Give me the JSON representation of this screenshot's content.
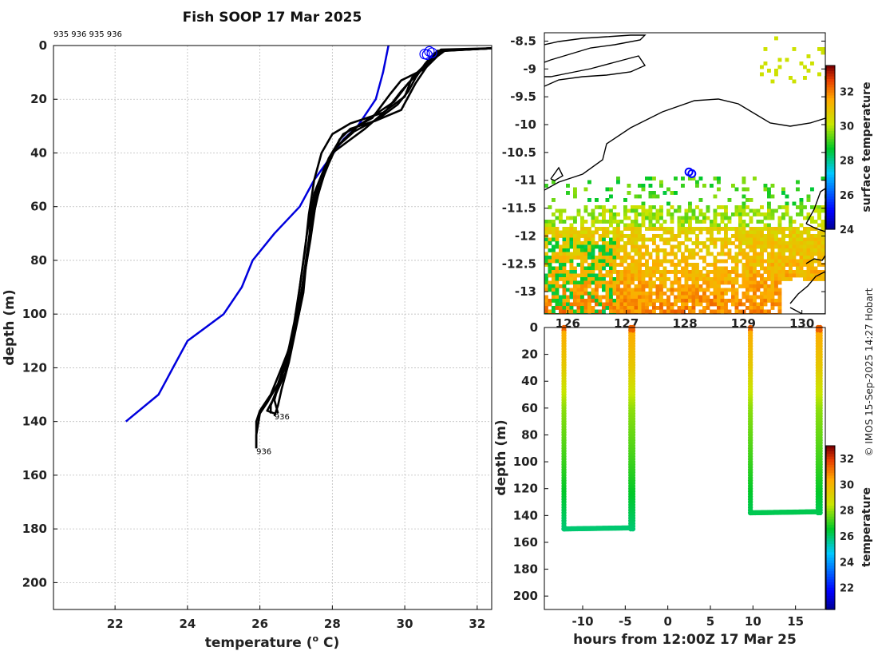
{
  "title": "Fish SOOP 17 Mar 2025",
  "credit": "© IMOS 15-Sep-2025 14:27 Hobart",
  "profile_ids_label": "935 936 935 936",
  "colors": {
    "profile": "#000000",
    "climatology": "#0000dd",
    "marker": "#0000ff"
  },
  "chart_data": [
    {
      "type": "line",
      "name": "temperature-profile",
      "xlabel": "temperature (o C)",
      "ylabel": "depth (m)",
      "xlim": [
        20.3,
        32.4
      ],
      "ylim": [
        0,
        210
      ],
      "xticks": [
        22,
        24,
        26,
        28,
        30,
        32
      ],
      "yticks": [
        0,
        20,
        40,
        60,
        80,
        100,
        120,
        140,
        160,
        180,
        200
      ],
      "end_labels": [
        {
          "text": "936",
          "x": 26.4,
          "y": 138
        },
        {
          "text": "936",
          "x": 25.9,
          "y": 151
        }
      ],
      "series": [
        {
          "name": "climatology",
          "color": "#0000dd",
          "points": [
            [
              29.55,
              0
            ],
            [
              29.4,
              10
            ],
            [
              29.2,
              20
            ],
            [
              28.7,
              30
            ],
            [
              28.3,
              35
            ],
            [
              27.5,
              50
            ],
            [
              27.1,
              60
            ],
            [
              26.4,
              70
            ],
            [
              25.8,
              80
            ],
            [
              25.5,
              90
            ],
            [
              25.0,
              100
            ],
            [
              24.0,
              110
            ],
            [
              23.6,
              120
            ],
            [
              23.4,
              125
            ],
            [
              23.2,
              130
            ],
            [
              22.3,
              140
            ]
          ]
        },
        {
          "name": "profile-1",
          "color": "#000000",
          "points": [
            [
              32.4,
              1
            ],
            [
              31.0,
              2
            ],
            [
              30.8,
              5
            ],
            [
              30.5,
              9
            ],
            [
              29.9,
              13
            ],
            [
              29.6,
              18
            ],
            [
              29.1,
              27
            ],
            [
              28.3,
              33
            ],
            [
              27.9,
              42
            ],
            [
              27.6,
              52
            ],
            [
              27.45,
              62
            ],
            [
              27.3,
              78
            ],
            [
              27.2,
              92
            ],
            [
              27.0,
              105
            ],
            [
              26.8,
              118
            ],
            [
              26.6,
              128
            ],
            [
              26.5,
              134
            ],
            [
              26.4,
              138
            ]
          ]
        },
        {
          "name": "profile-2",
          "color": "#000000",
          "points": [
            [
              32.4,
              1
            ],
            [
              30.9,
              2
            ],
            [
              30.7,
              5
            ],
            [
              30.4,
              10
            ],
            [
              30.1,
              14
            ],
            [
              29.7,
              21
            ],
            [
              28.7,
              30
            ],
            [
              28.1,
              38
            ],
            [
              27.8,
              45
            ],
            [
              27.5,
              55
            ],
            [
              27.3,
              70
            ],
            [
              27.15,
              85
            ],
            [
              27.0,
              100
            ],
            [
              26.9,
              110
            ],
            [
              26.7,
              122
            ],
            [
              26.4,
              131
            ],
            [
              26.2,
              136
            ],
            [
              26.4,
              137
            ]
          ]
        },
        {
          "name": "profile-3",
          "color": "#000000",
          "points": [
            [
              32.4,
              1
            ],
            [
              31.1,
              2
            ],
            [
              30.9,
              4
            ],
            [
              30.6,
              8
            ],
            [
              30.3,
              14
            ],
            [
              29.9,
              24
            ],
            [
              29.2,
              28
            ],
            [
              28.5,
              31
            ],
            [
              28.2,
              35
            ],
            [
              27.9,
              44
            ],
            [
              27.6,
              54
            ],
            [
              27.4,
              66
            ],
            [
              27.3,
              80
            ],
            [
              27.1,
              95
            ],
            [
              26.95,
              108
            ],
            [
              26.6,
              120
            ],
            [
              26.3,
              130
            ],
            [
              26.0,
              136
            ],
            [
              25.9,
              140
            ],
            [
              25.9,
              150
            ]
          ]
        },
        {
          "name": "profile-4",
          "color": "#000000",
          "points": [
            [
              32.4,
              1
            ],
            [
              31.0,
              1.5
            ],
            [
              30.8,
              4
            ],
            [
              30.5,
              8
            ],
            [
              30.2,
              12
            ],
            [
              30.0,
              19
            ],
            [
              29.4,
              25
            ],
            [
              28.5,
              29
            ],
            [
              28.0,
              33
            ],
            [
              27.7,
              40
            ],
            [
              27.5,
              50
            ],
            [
              27.35,
              63
            ],
            [
              27.25,
              76
            ],
            [
              27.1,
              90
            ],
            [
              26.95,
              103
            ],
            [
              26.75,
              116
            ],
            [
              26.5,
              126
            ],
            [
              26.2,
              133
            ],
            [
              26.0,
              137
            ],
            [
              25.9,
              145
            ],
            [
              25.9,
              150
            ]
          ]
        },
        {
          "name": "profile-5",
          "color": "#000000",
          "points": [
            [
              32.4,
              1
            ],
            [
              30.95,
              2
            ],
            [
              30.7,
              6
            ],
            [
              30.3,
              11
            ],
            [
              29.9,
              17
            ],
            [
              29.5,
              24
            ],
            [
              28.9,
              31
            ],
            [
              28.4,
              36
            ],
            [
              28.0,
              40
            ],
            [
              27.8,
              47
            ],
            [
              27.55,
              58
            ],
            [
              27.4,
              72
            ],
            [
              27.2,
              88
            ],
            [
              27.05,
              100
            ],
            [
              26.85,
              114
            ],
            [
              26.5,
              127
            ],
            [
              26.3,
              134
            ],
            [
              26.3,
              137
            ]
          ]
        },
        {
          "name": "profile-6",
          "color": "#000000",
          "points": [
            [
              32.4,
              1
            ],
            [
              31.0,
              2
            ],
            [
              30.8,
              3
            ],
            [
              30.55,
              7
            ],
            [
              30.3,
              12
            ],
            [
              30.1,
              17
            ],
            [
              29.8,
              22
            ],
            [
              29.3,
              27
            ],
            [
              28.6,
              32
            ],
            [
              28.1,
              38
            ],
            [
              27.8,
              46
            ],
            [
              27.6,
              56
            ],
            [
              27.4,
              68
            ],
            [
              27.25,
              82
            ],
            [
              27.1,
              96
            ],
            [
              26.9,
              108
            ],
            [
              26.6,
              122
            ],
            [
              26.4,
              132
            ],
            [
              26.5,
              137
            ]
          ]
        }
      ],
      "start_markers": [
        [
          30.55,
          2
        ],
        [
          30.68,
          1
        ],
        [
          30.75,
          1.5
        ],
        [
          30.62,
          2.2
        ]
      ]
    },
    {
      "type": "heatmap",
      "name": "sst-map",
      "colorbar_label": "surface temperature",
      "colorbar_ticks": [
        24,
        26,
        28,
        30,
        32
      ],
      "colorbar_range": [
        24,
        33.5
      ],
      "xlim": [
        125.6,
        130.4
      ],
      "ylim": [
        -13.4,
        -8.35
      ],
      "xticks": [
        126,
        127,
        128,
        129,
        130
      ],
      "yticks": [
        -8.5,
        -9,
        -9.5,
        -10,
        -10.5,
        -11,
        -11.5,
        -12,
        -12.5,
        -13
      ],
      "ship_positions": [
        [
          128.07,
          -10.85
        ],
        [
          128.12,
          -10.88
        ]
      ]
    },
    {
      "type": "scatter",
      "name": "depth-time-section",
      "xlabel": "hours from 12:00Z 17 Mar 25",
      "ylabel": "depth (m)",
      "colorbar_label": "temperature",
      "colorbar_ticks": [
        22,
        24,
        26,
        28,
        30,
        32
      ],
      "colorbar_range": [
        20.3,
        33
      ],
      "xlim": [
        -14.5,
        18.5
      ],
      "ylim": [
        0,
        210
      ],
      "xticks": [
        -10,
        -5,
        0,
        5,
        10,
        15
      ],
      "yticks": [
        0,
        20,
        40,
        60,
        80,
        100,
        120,
        140,
        160,
        180,
        200
      ],
      "casts": [
        {
          "hour_start": -12.2,
          "hour_end": -4.1,
          "max_depth": 150
        },
        {
          "hour_start": 9.7,
          "hour_end": 17.9,
          "max_depth": 138
        }
      ]
    }
  ]
}
